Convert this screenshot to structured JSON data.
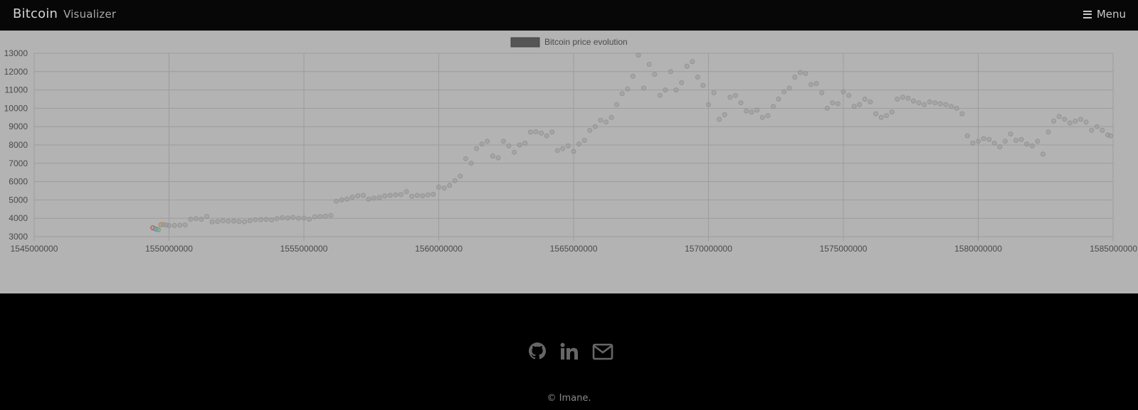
{
  "header": {
    "brand_main": "Bitcoin",
    "brand_sub": "Visualizer",
    "menu_label": "Menu",
    "menu_icon": "hamburger-icon"
  },
  "footer": {
    "links": [
      {
        "name": "github",
        "icon": "github-icon"
      },
      {
        "name": "linkedin",
        "icon": "linkedin-icon"
      },
      {
        "name": "email",
        "icon": "envelope-icon"
      }
    ],
    "copyright": "© Imane."
  },
  "colors": {
    "background": "#000000",
    "chart_background": "#b3b3b3",
    "point_color": "#9a9a9a",
    "legend_swatch": "#555555"
  },
  "chart_data": {
    "type": "scatter",
    "legend": [
      "Bitcoin price evolution"
    ],
    "legend_position": "top-center",
    "grid": true,
    "xlim": [
      1545000000,
      1585000000
    ],
    "ylim": [
      3000,
      13000
    ],
    "x_ticks": [
      1545000000,
      1550000000,
      1555000000,
      1560000000,
      1565000000,
      1570000000,
      1575000000,
      1580000000,
      1585000000
    ],
    "y_ticks": [
      3000,
      4000,
      5000,
      6000,
      7000,
      8000,
      9000,
      10000,
      11000,
      12000,
      13000
    ],
    "series": [
      {
        "name": "Bitcoin price evolution",
        "points": [
          [
            1549400000,
            3480
          ],
          [
            1549500000,
            3420
          ],
          [
            1549600000,
            3380
          ],
          [
            1549700000,
            3650
          ],
          [
            1549800000,
            3660
          ],
          [
            1549900000,
            3630
          ],
          [
            1550000000,
            3600
          ],
          [
            1550200000,
            3610
          ],
          [
            1550400000,
            3620
          ],
          [
            1550600000,
            3640
          ],
          [
            1550800000,
            3950
          ],
          [
            1551000000,
            3980
          ],
          [
            1551200000,
            3950
          ],
          [
            1551400000,
            4100
          ],
          [
            1551600000,
            3800
          ],
          [
            1551800000,
            3820
          ],
          [
            1552000000,
            3860
          ],
          [
            1552200000,
            3840
          ],
          [
            1552400000,
            3850
          ],
          [
            1552600000,
            3820
          ],
          [
            1552800000,
            3810
          ],
          [
            1553000000,
            3870
          ],
          [
            1553200000,
            3920
          ],
          [
            1553400000,
            3930
          ],
          [
            1553600000,
            3940
          ],
          [
            1553800000,
            3910
          ],
          [
            1554000000,
            3980
          ],
          [
            1554200000,
            4030
          ],
          [
            1554400000,
            4010
          ],
          [
            1554600000,
            4050
          ],
          [
            1554800000,
            4000
          ],
          [
            1555000000,
            4010
          ],
          [
            1555200000,
            3950
          ],
          [
            1555400000,
            4080
          ],
          [
            1555600000,
            4100
          ],
          [
            1555800000,
            4120
          ],
          [
            1556000000,
            4150
          ],
          [
            1556200000,
            4930
          ],
          [
            1556400000,
            5000
          ],
          [
            1556600000,
            5050
          ],
          [
            1556800000,
            5150
          ],
          [
            1557000000,
            5230
          ],
          [
            1557200000,
            5250
          ],
          [
            1557400000,
            5050
          ],
          [
            1557600000,
            5100
          ],
          [
            1557800000,
            5130
          ],
          [
            1558000000,
            5220
          ],
          [
            1558200000,
            5250
          ],
          [
            1558400000,
            5280
          ],
          [
            1558600000,
            5300
          ],
          [
            1558800000,
            5450
          ],
          [
            1559000000,
            5200
          ],
          [
            1559200000,
            5250
          ],
          [
            1559400000,
            5230
          ],
          [
            1559600000,
            5280
          ],
          [
            1559800000,
            5310
          ],
          [
            1560000000,
            5700
          ],
          [
            1560200000,
            5650
          ],
          [
            1560400000,
            5800
          ],
          [
            1560600000,
            6050
          ],
          [
            1560800000,
            6300
          ],
          [
            1561000000,
            7250
          ],
          [
            1561200000,
            7000
          ],
          [
            1561400000,
            7800
          ],
          [
            1561600000,
            8050
          ],
          [
            1561800000,
            8200
          ],
          [
            1562000000,
            7400
          ],
          [
            1562200000,
            7300
          ],
          [
            1562400000,
            8200
          ],
          [
            1562600000,
            7950
          ],
          [
            1562800000,
            7600
          ],
          [
            1563000000,
            8000
          ],
          [
            1563200000,
            8100
          ],
          [
            1563400000,
            8700
          ],
          [
            1563600000,
            8720
          ],
          [
            1563800000,
            8650
          ],
          [
            1564000000,
            8500
          ],
          [
            1564200000,
            8700
          ],
          [
            1564400000,
            7700
          ],
          [
            1564600000,
            7800
          ],
          [
            1564800000,
            7950
          ],
          [
            1565000000,
            7650
          ],
          [
            1565200000,
            8050
          ],
          [
            1565400000,
            8250
          ],
          [
            1565600000,
            8800
          ],
          [
            1565800000,
            9000
          ],
          [
            1566000000,
            9350
          ],
          [
            1566200000,
            9250
          ],
          [
            1566400000,
            9500
          ],
          [
            1566600000,
            10200
          ],
          [
            1566800000,
            10800
          ],
          [
            1567000000,
            11050
          ],
          [
            1567200000,
            11750
          ],
          [
            1567400000,
            12900
          ],
          [
            1567600000,
            11100
          ],
          [
            1567800000,
            12400
          ],
          [
            1568000000,
            11850
          ],
          [
            1568200000,
            10700
          ],
          [
            1568400000,
            11000
          ],
          [
            1568600000,
            12000
          ],
          [
            1568800000,
            11000
          ],
          [
            1569000000,
            11400
          ],
          [
            1569200000,
            12300
          ],
          [
            1569400000,
            12550
          ],
          [
            1569600000,
            11700
          ],
          [
            1569800000,
            11250
          ],
          [
            1570000000,
            10200
          ],
          [
            1570200000,
            10850
          ],
          [
            1570400000,
            9400
          ],
          [
            1570600000,
            9650
          ],
          [
            1570800000,
            10600
          ],
          [
            1571000000,
            10700
          ],
          [
            1571200000,
            10300
          ],
          [
            1571400000,
            9850
          ],
          [
            1571600000,
            9800
          ],
          [
            1571800000,
            9900
          ],
          [
            1572000000,
            9500
          ],
          [
            1572200000,
            9600
          ],
          [
            1572400000,
            10100
          ],
          [
            1572600000,
            10500
          ],
          [
            1572800000,
            10900
          ],
          [
            1573000000,
            11100
          ],
          [
            1573200000,
            11700
          ],
          [
            1573400000,
            11950
          ],
          [
            1573600000,
            11900
          ],
          [
            1573800000,
            11300
          ],
          [
            1574000000,
            11350
          ],
          [
            1574200000,
            10850
          ],
          [
            1574400000,
            10000
          ],
          [
            1574600000,
            10300
          ],
          [
            1574800000,
            10250
          ],
          [
            1575000000,
            10900
          ],
          [
            1575200000,
            10700
          ],
          [
            1575400000,
            10100
          ],
          [
            1575600000,
            10200
          ],
          [
            1575800000,
            10500
          ],
          [
            1576000000,
            10350
          ],
          [
            1576200000,
            9700
          ],
          [
            1576400000,
            9500
          ],
          [
            1576600000,
            9600
          ],
          [
            1576800000,
            9800
          ],
          [
            1577000000,
            10500
          ],
          [
            1577200000,
            10600
          ],
          [
            1577400000,
            10550
          ],
          [
            1577600000,
            10400
          ],
          [
            1577800000,
            10300
          ],
          [
            1578000000,
            10200
          ],
          [
            1578200000,
            10350
          ],
          [
            1578400000,
            10300
          ],
          [
            1578600000,
            10250
          ],
          [
            1578800000,
            10200
          ],
          [
            1579000000,
            10100
          ],
          [
            1579200000,
            10000
          ],
          [
            1579400000,
            9700
          ],
          [
            1579600000,
            8500
          ],
          [
            1579800000,
            8100
          ],
          [
            1580000000,
            8200
          ],
          [
            1580200000,
            8350
          ],
          [
            1580400000,
            8300
          ],
          [
            1580600000,
            8100
          ],
          [
            1580800000,
            7900
          ],
          [
            1581000000,
            8200
          ],
          [
            1581200000,
            8600
          ],
          [
            1581400000,
            8250
          ],
          [
            1581600000,
            8300
          ],
          [
            1581800000,
            8050
          ],
          [
            1582000000,
            7950
          ],
          [
            1582200000,
            8200
          ],
          [
            1582400000,
            7500
          ],
          [
            1582600000,
            8700
          ],
          [
            1582800000,
            9300
          ],
          [
            1583000000,
            9550
          ],
          [
            1583200000,
            9400
          ],
          [
            1583400000,
            9200
          ],
          [
            1583600000,
            9300
          ],
          [
            1583800000,
            9400
          ],
          [
            1584000000,
            9250
          ],
          [
            1584200000,
            8800
          ],
          [
            1584400000,
            9000
          ],
          [
            1584600000,
            8800
          ],
          [
            1584800000,
            8550
          ],
          [
            1584900000,
            8500
          ]
        ]
      }
    ]
  }
}
